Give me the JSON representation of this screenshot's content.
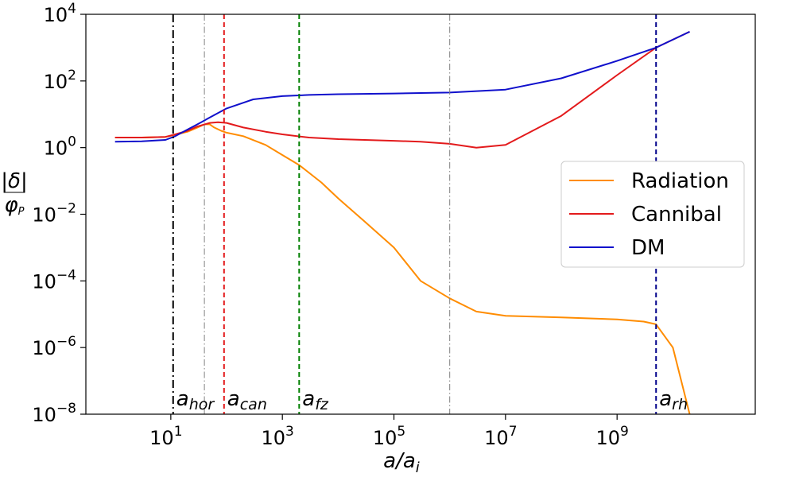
{
  "chart_data": {
    "type": "line",
    "xscale": "log",
    "yscale": "log",
    "xlim": [
      0.3,
      300000000000.0
    ],
    "ylim": [
      1e-08,
      10000.0
    ],
    "xlabel": "a/a_i",
    "ylabel": "|δ|/φ_P",
    "xticks": [
      {
        "value": 10,
        "base": "10",
        "exp": "1"
      },
      {
        "value": 1000,
        "base": "10",
        "exp": "3"
      },
      {
        "value": 100000,
        "base": "10",
        "exp": "5"
      },
      {
        "value": 10000000,
        "base": "10",
        "exp": "7"
      },
      {
        "value": 1000000000,
        "base": "10",
        "exp": "9"
      }
    ],
    "yticks": [
      {
        "value": 1e-08,
        "base": "10",
        "exp": "−8"
      },
      {
        "value": 1e-06,
        "base": "10",
        "exp": "−6"
      },
      {
        "value": 0.0001,
        "base": "10",
        "exp": "−4"
      },
      {
        "value": 0.01,
        "base": "10",
        "exp": "−2"
      },
      {
        "value": 1,
        "base": "10",
        "exp": "0"
      },
      {
        "value": 100,
        "base": "10",
        "exp": "2"
      },
      {
        "value": 10000,
        "base": "10",
        "exp": "4"
      }
    ],
    "legend": "center-right",
    "grid": false,
    "series": [
      {
        "name": "Radiation",
        "color": "#ff8c00",
        "x": [
          1,
          3,
          8,
          12,
          20,
          30,
          40,
          50,
          60,
          80,
          100,
          200,
          500,
          1000,
          2000,
          5000,
          10000,
          30000,
          100000,
          300000,
          1000000,
          3000000,
          10000000,
          100000000,
          1000000000,
          3000000000,
          5000000000,
          10000000000,
          20000000000
        ],
        "y": [
          2.0,
          2.0,
          2.1,
          2.4,
          3.0,
          4.0,
          5.0,
          5.0,
          4.0,
          3.2,
          2.8,
          2.2,
          1.2,
          0.6,
          0.3,
          0.09,
          0.03,
          0.006,
          0.001,
          0.0001,
          3e-05,
          1.2e-05,
          9e-06,
          8e-06,
          7e-06,
          6e-06,
          5e-06,
          1e-06,
          1e-08
        ]
      },
      {
        "name": "Cannibal",
        "color": "#e31a1c",
        "x": [
          1,
          3,
          8,
          12,
          20,
          30,
          50,
          70,
          100,
          200,
          500,
          1000,
          3000,
          10000,
          30000,
          100000,
          300000,
          1000000,
          3000000,
          10000000,
          100000000,
          1000000000,
          5000000000,
          20000000000
        ],
        "y": [
          2.0,
          2.0,
          2.1,
          2.5,
          3.2,
          4.3,
          5.5,
          5.8,
          5.5,
          4.0,
          3.0,
          2.5,
          2.0,
          1.8,
          1.7,
          1.6,
          1.5,
          1.3,
          1.0,
          1.2,
          9.0,
          150,
          1000,
          3000
        ]
      },
      {
        "name": "DM",
        "color": "#1010cc",
        "x": [
          1,
          3,
          8,
          12,
          20,
          30,
          50,
          100,
          300,
          1000,
          3000,
          10000,
          100000,
          1000000,
          10000000,
          100000000,
          1000000000,
          5000000000,
          20000000000
        ],
        "y": [
          1.5,
          1.55,
          1.7,
          2.2,
          3.5,
          5.0,
          8.0,
          15,
          28,
          35,
          38,
          40,
          42,
          45,
          55,
          120,
          400,
          1000,
          3000
        ]
      }
    ],
    "annotations": [
      {
        "x": 11,
        "color": "#000000",
        "style": "dashdot-thick",
        "label_base": "a",
        "label_sub": "hor"
      },
      {
        "x": 40,
        "color": "#808080",
        "style": "dashdot-thin",
        "label_base": "",
        "label_sub": ""
      },
      {
        "x": 90,
        "color": "#e31a1c",
        "style": "dashed",
        "label_base": "a",
        "label_sub": "can"
      },
      {
        "x": 2000,
        "color": "#008000",
        "style": "dashed",
        "label_base": "a",
        "label_sub": "fz"
      },
      {
        "x": 1000000,
        "color": "#808080",
        "style": "dashdot-thin",
        "label_base": "",
        "label_sub": ""
      },
      {
        "x": 5000000000,
        "color": "#00008b",
        "style": "dashed",
        "label_base": "a",
        "label_sub": "rh"
      }
    ]
  }
}
